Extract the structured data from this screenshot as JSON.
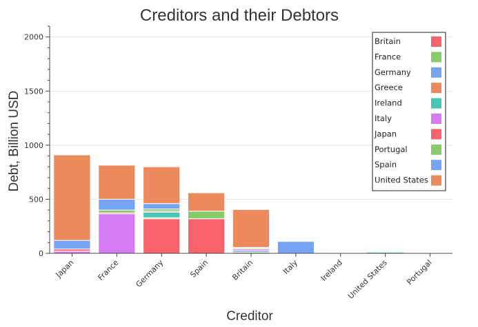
{
  "chart_data": {
    "type": "bar",
    "stacked": true,
    "title": "Creditors and their Debtors",
    "xlabel": "Creditor",
    "ylabel": "Debt, Billion USD",
    "ylim": [
      0,
      2100
    ],
    "y_ticks": [
      0,
      500,
      1000,
      1500,
      2000
    ],
    "grid": "horizontal",
    "legend_position": "top-right",
    "categories": [
      "Japan",
      "France",
      "Germany",
      "Spain",
      "Britain",
      "Italy",
      "Ireland",
      "United States",
      "Portugal"
    ],
    "series": [
      {
        "name": "Britain",
        "color": "#f8636e",
        "values": [
          0,
          0,
          320,
          0,
          0,
          0,
          0,
          0,
          0
        ]
      },
      {
        "name": "France",
        "color": "#87cb6b",
        "values": [
          0,
          0,
          10,
          0,
          10,
          0,
          0,
          0,
          0
        ]
      },
      {
        "name": "Germany",
        "color": "#76a4f2",
        "values": [
          0,
          0,
          0,
          0,
          15,
          0,
          0,
          0,
          0
        ]
      },
      {
        "name": "Greece",
        "color": "#ec8a5e",
        "values": [
          0,
          0,
          0,
          0,
          0,
          0,
          0,
          0,
          0
        ]
      },
      {
        "name": "Ireland",
        "color": "#47c5b6",
        "values": [
          0,
          0,
          50,
          0,
          0,
          0,
          0,
          10,
          0
        ]
      },
      {
        "name": "Italy",
        "color": "#d67cf3",
        "values": [
          20,
          365,
          10,
          0,
          15,
          0,
          0,
          0,
          0
        ]
      },
      {
        "name": "Japan",
        "color": "#f8636e",
        "values": [
          20,
          10,
          0,
          320,
          0,
          0,
          5,
          0,
          5
        ]
      },
      {
        "name": "Portugal",
        "color": "#87cb6b",
        "values": [
          0,
          25,
          20,
          70,
          10,
          0,
          0,
          0,
          0
        ]
      },
      {
        "name": "Spain",
        "color": "#76a4f2",
        "values": [
          80,
          100,
          50,
          0,
          5,
          110,
          0,
          0,
          0
        ]
      },
      {
        "name": "United States",
        "color": "#ec8a5e",
        "values": [
          790,
          315,
          340,
          170,
          350,
          0,
          0,
          0,
          0
        ]
      }
    ]
  }
}
